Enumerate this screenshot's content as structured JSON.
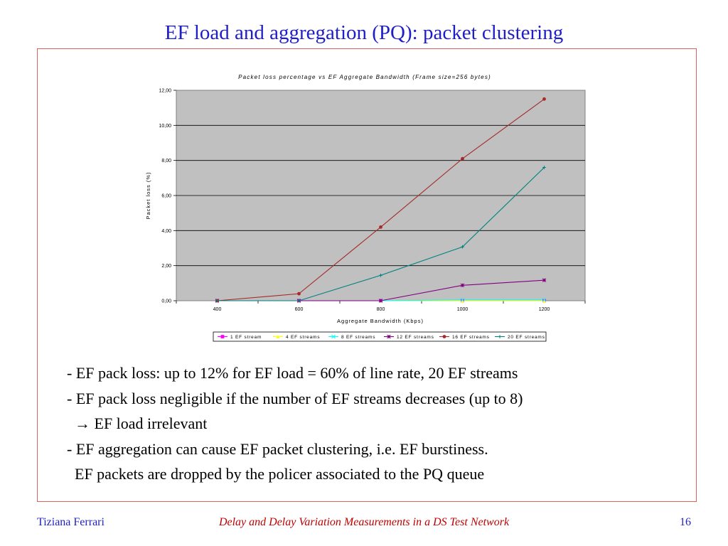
{
  "slide": {
    "title": "EF load and aggregation (PQ): packet clustering",
    "bullets": [
      "- EF pack loss: up to 12% for EF load = 60% of line rate, 20 EF streams",
      "- EF pack loss negligible if the number of EF streams decreases (up to 8)",
      "  → EF load irrelevant",
      "- EF aggregation can cause EF packet clustering, i.e. EF burstiness.",
      "  EF packets are dropped by the policer associated to the PQ queue"
    ],
    "footer": {
      "author": "Tiziana Ferrari",
      "title": "Delay and Delay Variation Measurements in a DS Test Network",
      "page": "16"
    }
  },
  "colors": {
    "title": "#1f1fc8",
    "footer_center": "#c00000",
    "frame": "#e06060",
    "plot_bg": "#c0c0c0"
  },
  "chart_data": {
    "type": "line",
    "title": "Packet loss percentage vs EF Aggregate Bandwidth (Frame size=256 bytes)",
    "xlabel": "Aggregate Bandwidth (Kbps)",
    "ylabel": "Packet loss (%)",
    "categories": [
      "400",
      "600",
      "800",
      "1000",
      "1200"
    ],
    "ylim": [
      0,
      12
    ],
    "yticks": [
      "0,00",
      "2,00",
      "4,00",
      "6,00",
      "8,00",
      "10,00",
      "12,00"
    ],
    "grid": true,
    "legend_position": "bottom",
    "series": [
      {
        "name": "1 EF stream",
        "color": "#ff00ff",
        "marker": "square",
        "values": [
          0,
          0,
          0,
          0,
          0
        ]
      },
      {
        "name": "4 EF streams",
        "color": "#ffff00",
        "marker": "triangle",
        "values": [
          0,
          0,
          0,
          0,
          0
        ]
      },
      {
        "name": "8 EF streams",
        "color": "#00ffff",
        "marker": "x",
        "values": [
          0,
          0,
          0,
          0.05,
          0.05
        ]
      },
      {
        "name": "12 EF streams",
        "color": "#800080",
        "marker": "star",
        "values": [
          0,
          0,
          0,
          0.88,
          1.17
        ]
      },
      {
        "name": "16 EF streams",
        "color": "#a52a2a",
        "marker": "circle",
        "values": [
          0,
          0.4,
          4.2,
          8.1,
          11.5
        ]
      },
      {
        "name": "20 EF streams",
        "color": "#008080",
        "marker": "plus",
        "values": [
          0,
          0,
          1.45,
          3.07,
          7.6
        ]
      }
    ]
  }
}
